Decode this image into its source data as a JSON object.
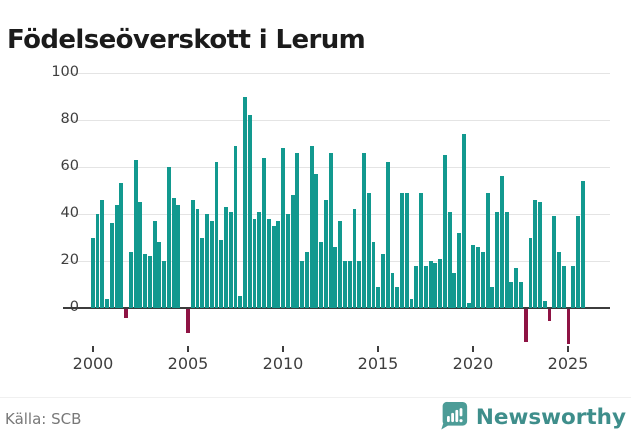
{
  "header": {
    "title": "Födelseöverskott i Lerum"
  },
  "chart_data": {
    "type": "bar",
    "title": "Födelseöverskott i Lerum",
    "xlabel": "",
    "ylabel": "",
    "ylim": [
      -20,
      100
    ],
    "grid": true,
    "legend": "none",
    "yticks": [
      0,
      20,
      40,
      60,
      80,
      100
    ],
    "xticks": [
      2000,
      2005,
      2010,
      2015,
      2020,
      2025
    ],
    "positive_color": "#12998f",
    "negative_color": "#8e1344",
    "x": [
      "2000-Q1",
      "2000-Q2",
      "2000-Q3",
      "2000-Q4",
      "2001-Q1",
      "2001-Q2",
      "2001-Q3",
      "2001-Q4",
      "2002-Q1",
      "2002-Q2",
      "2002-Q3",
      "2002-Q4",
      "2003-Q1",
      "2003-Q2",
      "2003-Q3",
      "2003-Q4",
      "2004-Q1",
      "2004-Q2",
      "2004-Q3",
      "2004-Q4",
      "2005-Q1",
      "2005-Q2",
      "2005-Q3",
      "2005-Q4",
      "2006-Q1",
      "2006-Q2",
      "2006-Q3",
      "2006-Q4",
      "2007-Q1",
      "2007-Q2",
      "2007-Q3",
      "2007-Q4",
      "2008-Q1",
      "2008-Q2",
      "2008-Q3",
      "2008-Q4",
      "2009-Q1",
      "2009-Q2",
      "2009-Q3",
      "2009-Q4",
      "2010-Q1",
      "2010-Q2",
      "2010-Q3",
      "2010-Q4",
      "2011-Q1",
      "2011-Q2",
      "2011-Q3",
      "2011-Q4",
      "2012-Q1",
      "2012-Q2",
      "2012-Q3",
      "2012-Q4",
      "2013-Q1",
      "2013-Q2",
      "2013-Q3",
      "2013-Q4",
      "2014-Q1",
      "2014-Q2",
      "2014-Q3",
      "2014-Q4",
      "2015-Q1",
      "2015-Q2",
      "2015-Q3",
      "2015-Q4",
      "2016-Q1",
      "2016-Q2",
      "2016-Q3",
      "2016-Q4",
      "2017-Q1",
      "2017-Q2",
      "2017-Q3",
      "2017-Q4",
      "2018-Q1",
      "2018-Q2",
      "2018-Q3",
      "2018-Q4",
      "2019-Q1",
      "2019-Q2",
      "2019-Q3",
      "2019-Q4",
      "2020-Q1",
      "2020-Q2",
      "2020-Q3",
      "2020-Q4",
      "2021-Q1",
      "2021-Q2",
      "2021-Q3",
      "2021-Q4",
      "2022-Q1",
      "2022-Q2",
      "2022-Q3",
      "2022-Q4",
      "2023-Q1",
      "2023-Q2",
      "2023-Q3",
      "2023-Q4",
      "2024-Q1",
      "2024-Q2",
      "2024-Q3",
      "2024-Q4",
      "2025-Q1",
      "2025-Q2",
      "2025-Q3",
      "2025-Q4"
    ],
    "values": [
      30,
      40,
      46,
      4,
      36,
      44,
      53,
      -4,
      24,
      63,
      45,
      23,
      22,
      37,
      28,
      20,
      60,
      47,
      44,
      0,
      -10,
      46,
      42,
      30,
      40,
      37,
      62,
      29,
      43,
      41,
      69,
      5,
      90,
      82,
      38,
      41,
      64,
      38,
      35,
      37,
      68,
      40,
      48,
      66,
      20,
      24,
      69,
      57,
      28,
      46,
      66,
      26,
      37,
      20,
      20,
      42,
      20,
      66,
      49,
      28,
      9,
      23,
      62,
      15,
      9,
      49,
      49,
      4,
      18,
      49,
      18,
      20,
      19,
      21,
      65,
      41,
      15,
      32,
      74,
      2,
      27,
      26,
      24,
      49,
      9,
      41,
      56,
      41,
      11,
      17,
      11,
      -14,
      30,
      46,
      45,
      3,
      -5,
      39,
      24,
      18,
      -15,
      18,
      39,
      54
    ]
  },
  "footer": {
    "source_label": "Källa: SCB",
    "brand": "Newsworthy",
    "brand_color": "#3e8e8b",
    "brand_icon_color": "#4c9c97"
  }
}
